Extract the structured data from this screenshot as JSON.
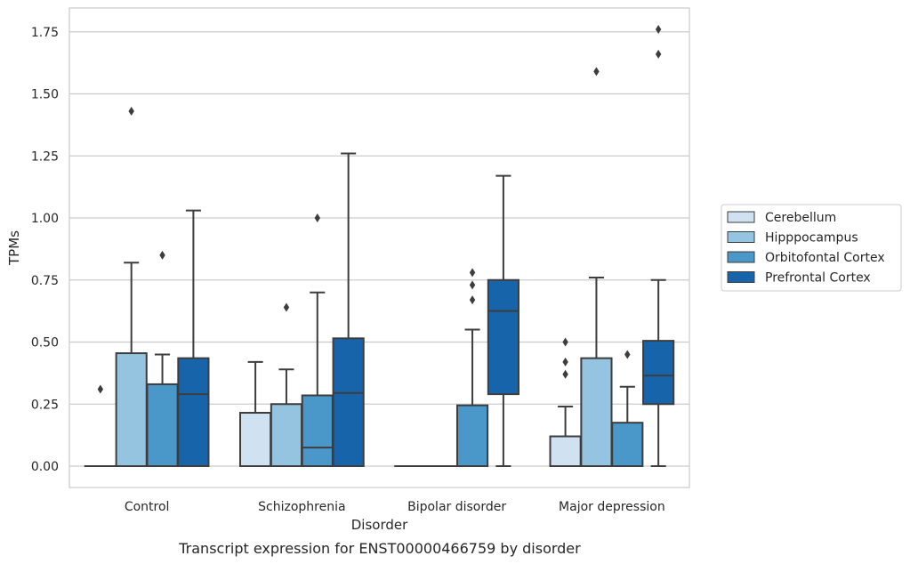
{
  "chart_data": {
    "type": "box",
    "title": "Transcript expression for ENST00000466759 by disorder",
    "xlabel": "Disorder",
    "ylabel": "TPMs",
    "ylim": [
      -0.09,
      1.85
    ],
    "yticks": [
      "0.00",
      "0.25",
      "0.50",
      "0.75",
      "1.00",
      "1.25",
      "1.50",
      "1.75"
    ],
    "grid": "horizontal",
    "legend_position": "right",
    "categories": [
      "Control",
      "Schizophrenia",
      "Bipolar disorder",
      "Major depression"
    ],
    "series": [
      {
        "name": "Cerebellum",
        "color": "#d0e1f2",
        "boxes": [
          {
            "q1": 0,
            "median": 0,
            "q3": 0,
            "whislo": 0,
            "whishi": 0,
            "fliers": [
              0.31
            ]
          },
          {
            "q1": 0,
            "median": 0,
            "q3": 0.215,
            "whislo": 0,
            "whishi": 0.42,
            "fliers": []
          },
          {
            "q1": 0,
            "median": 0,
            "q3": 0,
            "whislo": 0,
            "whishi": 0,
            "fliers": []
          },
          {
            "q1": 0,
            "median": 0,
            "q3": 0.12,
            "whislo": 0,
            "whishi": 0.24,
            "fliers": [
              0.37,
              0.42,
              0.5
            ]
          }
        ]
      },
      {
        "name": "Hipppocampus",
        "color": "#94c4df",
        "boxes": [
          {
            "q1": 0,
            "median": 0,
            "q3": 0.455,
            "whislo": 0,
            "whishi": 0.82,
            "fliers": [
              1.43
            ]
          },
          {
            "q1": 0,
            "median": 0,
            "q3": 0.25,
            "whislo": 0,
            "whishi": 0.39,
            "fliers": [
              0.64
            ]
          },
          {
            "q1": 0,
            "median": 0,
            "q3": 0,
            "whislo": 0,
            "whishi": 0,
            "fliers": []
          },
          {
            "q1": 0,
            "median": 0,
            "q3": 0.435,
            "whislo": 0,
            "whishi": 0.76,
            "fliers": [
              1.59
            ]
          }
        ]
      },
      {
        "name": "Orbitofontal Cortex",
        "color": "#4a98c9",
        "boxes": [
          {
            "q1": 0,
            "median": 0,
            "q3": 0.33,
            "whislo": 0,
            "whishi": 0.45,
            "fliers": [
              0.85
            ]
          },
          {
            "q1": 0,
            "median": 0.075,
            "q3": 0.285,
            "whislo": 0,
            "whishi": 0.7,
            "fliers": [
              1.0
            ]
          },
          {
            "q1": 0,
            "median": 0,
            "q3": 0.245,
            "whislo": 0,
            "whishi": 0.55,
            "fliers": [
              0.67,
              0.73,
              0.78
            ]
          },
          {
            "q1": 0,
            "median": 0,
            "q3": 0.175,
            "whislo": 0,
            "whishi": 0.32,
            "fliers": [
              0.45
            ]
          }
        ]
      },
      {
        "name": "Prefrontal Cortex",
        "color": "#1764ab",
        "boxes": [
          {
            "q1": 0,
            "median": 0.29,
            "q3": 0.435,
            "whislo": 0,
            "whishi": 1.03,
            "fliers": []
          },
          {
            "q1": 0,
            "median": 0.295,
            "q3": 0.515,
            "whislo": 0,
            "whishi": 1.26,
            "fliers": []
          },
          {
            "q1": 0.29,
            "median": 0.625,
            "q3": 0.75,
            "whislo": 0,
            "whishi": 1.17,
            "fliers": []
          },
          {
            "q1": 0.25,
            "median": 0.365,
            "q3": 0.505,
            "whislo": 0,
            "whishi": 0.75,
            "fliers": [
              1.66,
              1.76
            ]
          }
        ]
      }
    ]
  }
}
